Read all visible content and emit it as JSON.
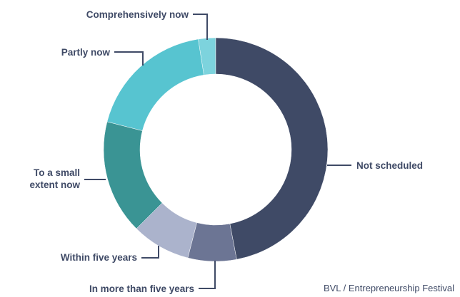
{
  "chart_data": {
    "type": "donut",
    "categories": [
      "Not scheduled",
      "In more than five years",
      "Within five years",
      "To a small extent now",
      "Partly now",
      "Comprehensively now"
    ],
    "values": [
      47,
      7,
      8.5,
      16.5,
      18.5,
      2.5
    ],
    "colors": [
      "#3f4a66",
      "#6c7594",
      "#abb3cc",
      "#3a9494",
      "#57c4d0",
      "#7dd3dd"
    ],
    "source": "BVL / Entrepreneurship Festival"
  }
}
